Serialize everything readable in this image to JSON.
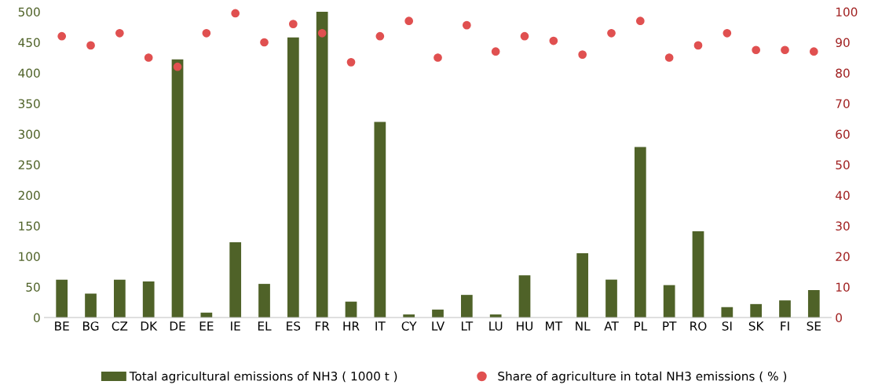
{
  "chart_data": {
    "type": "bar",
    "categories": [
      "BE",
      "BG",
      "CZ",
      "DK",
      "DE",
      "EE",
      "IE",
      "EL",
      "ES",
      "FR",
      "HR",
      "IT",
      "CY",
      "LV",
      "LT",
      "LU",
      "HU",
      "MT",
      "NL",
      "AT",
      "PL",
      "PT",
      "RO",
      "SI",
      "SK",
      "FI",
      "SE"
    ],
    "series": [
      {
        "name": "Total agricultural emissions of NH3 ( 1000 t )",
        "color": "#4f6228",
        "values": [
          62,
          39,
          62,
          59,
          422,
          8,
          123,
          55,
          458,
          500,
          26,
          320,
          5,
          13,
          37,
          5,
          69,
          0,
          105,
          62,
          279,
          53,
          141,
          17,
          22,
          28,
          45
        ]
      },
      {
        "name": "Share of agriculture in total NH3 emissions ( % )",
        "type": "scatter",
        "axis": "y2",
        "color": "#e05050",
        "values": [
          92,
          89,
          93,
          85,
          82,
          93,
          99.5,
          90,
          96,
          93,
          83.5,
          92,
          97,
          85,
          95.6,
          87,
          92,
          90.5,
          86,
          93,
          97,
          85,
          89,
          93,
          87.5,
          87.5,
          87
        ]
      }
    ],
    "ylim": [
      0,
      500
    ],
    "yticks": [
      0,
      50,
      100,
      150,
      200,
      250,
      300,
      350,
      400,
      450,
      500
    ],
    "y2lim": [
      0,
      100
    ],
    "y2ticks": [
      0,
      10,
      20,
      30,
      40,
      50,
      60,
      70,
      80,
      90,
      100
    ],
    "grid": false,
    "legend": "bottom",
    "marker": "circle"
  }
}
